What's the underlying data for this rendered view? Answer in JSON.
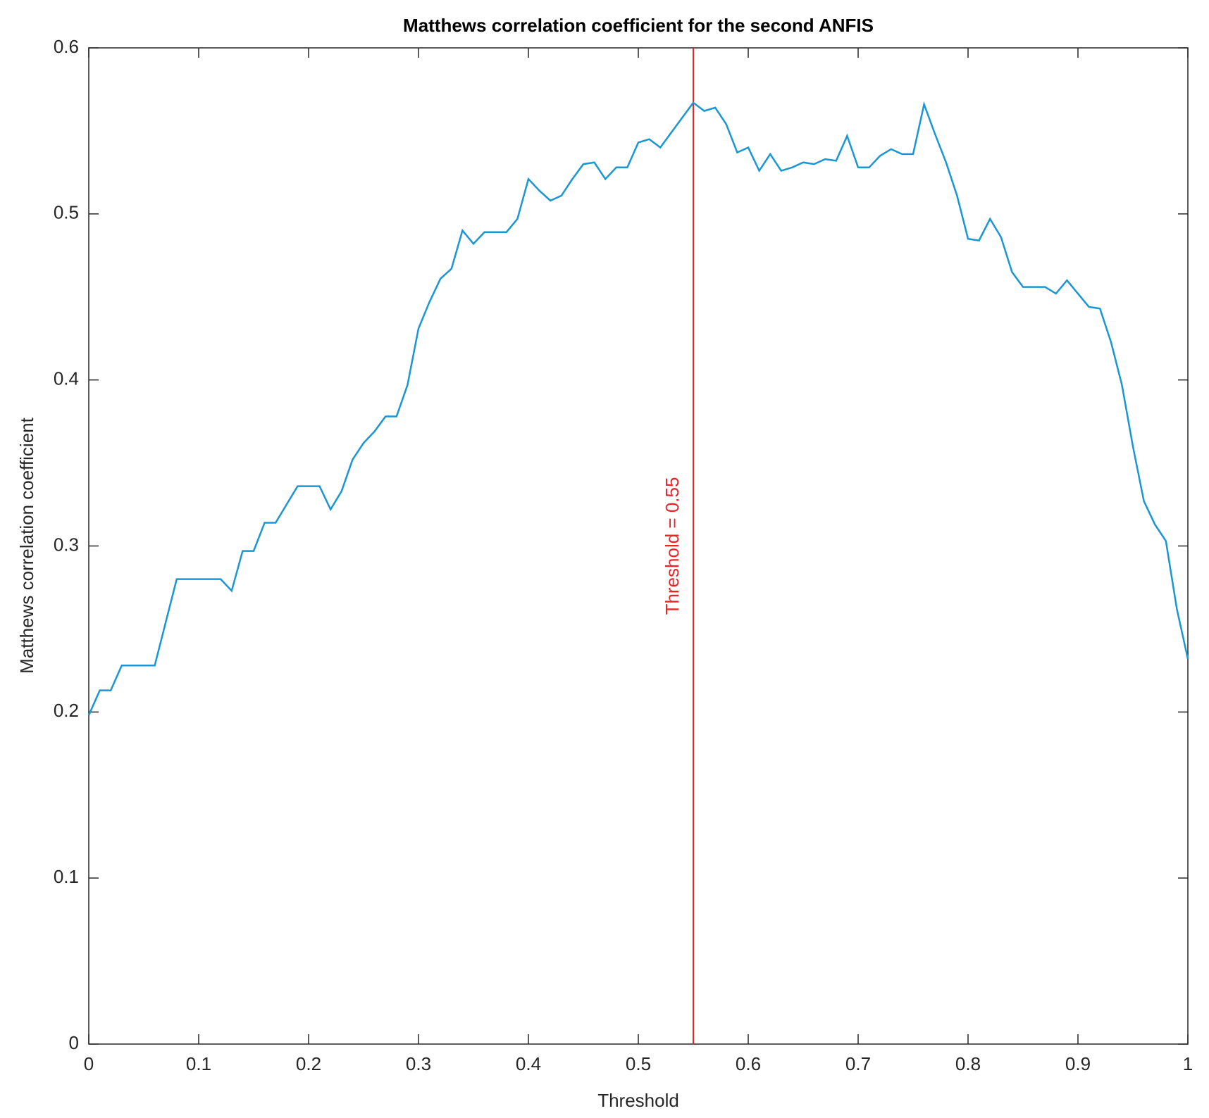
{
  "chart_data": {
    "type": "line",
    "title": "Matthews correlation coefficient for the second ANFIS",
    "x_label": "Threshold",
    "y_label": "Matthews correlation coefficient",
    "x": [
      0,
      0.01,
      0.02,
      0.03,
      0.04,
      0.05,
      0.06,
      0.07,
      0.08,
      0.09,
      0.1,
      0.11,
      0.12,
      0.13,
      0.14,
      0.15,
      0.16,
      0.17,
      0.18,
      0.19,
      0.2,
      0.21,
      0.22,
      0.23,
      0.24,
      0.25,
      0.26,
      0.27,
      0.28,
      0.29,
      0.3,
      0.31,
      0.32,
      0.33,
      0.34,
      0.35,
      0.36,
      0.37,
      0.38,
      0.39,
      0.4,
      0.41,
      0.42,
      0.43,
      0.44,
      0.45,
      0.46,
      0.47,
      0.48,
      0.49,
      0.5,
      0.51,
      0.52,
      0.53,
      0.54,
      0.55,
      0.56,
      0.57,
      0.58,
      0.59,
      0.6,
      0.61,
      0.62,
      0.63,
      0.64,
      0.65,
      0.66,
      0.67,
      0.68,
      0.69,
      0.7,
      0.71,
      0.72,
      0.73,
      0.74,
      0.75,
      0.76,
      0.77,
      0.78,
      0.79,
      0.8,
      0.81,
      0.82,
      0.83,
      0.84,
      0.85,
      0.86,
      0.87,
      0.88,
      0.89,
      0.9,
      0.91,
      0.92,
      0.93,
      0.94,
      0.95,
      0.96,
      0.97,
      0.98,
      0.99,
      1
    ],
    "values": [
      0.198,
      0.213,
      0.213,
      0.228,
      0.228,
      0.228,
      0.228,
      0.254,
      0.28,
      0.28,
      0.28,
      0.28,
      0.28,
      0.273,
      0.297,
      0.297,
      0.314,
      0.314,
      0.325,
      0.336,
      0.336,
      0.336,
      0.322,
      0.333,
      0.352,
      0.362,
      0.369,
      0.378,
      0.378,
      0.397,
      0.431,
      0.447,
      0.461,
      0.467,
      0.49,
      0.482,
      0.489,
      0.489,
      0.489,
      0.497,
      0.521,
      0.514,
      0.508,
      0.511,
      0.521,
      0.53,
      0.531,
      0.521,
      0.528,
      0.528,
      0.543,
      0.545,
      0.54,
      0.549,
      0.558,
      0.567,
      0.562,
      0.564,
      0.554,
      0.537,
      0.54,
      0.526,
      0.536,
      0.526,
      0.528,
      0.531,
      0.53,
      0.533,
      0.532,
      0.547,
      0.528,
      0.528,
      0.535,
      0.539,
      0.536,
      0.536,
      0.566,
      0.548,
      0.531,
      0.511,
      0.485,
      0.484,
      0.497,
      0.486,
      0.465,
      0.456,
      0.456,
      0.456,
      0.452,
      0.46,
      0.452,
      0.444,
      0.443,
      0.423,
      0.397,
      0.36,
      0.327,
      0.313,
      0.303,
      0.262,
      0.232
    ],
    "color": "#1a96d4",
    "threshold": {
      "value": 0.55,
      "label": "Threshold = 0.55",
      "color": "#e8262a"
    },
    "xlim": [
      0,
      1
    ],
    "xticks": [
      0,
      0.1,
      0.2,
      0.3,
      0.4,
      0.5,
      0.6,
      0.7,
      0.8,
      0.9,
      1
    ],
    "ylim": [
      0,
      0.6
    ],
    "yticks": [
      0,
      0.1,
      0.2,
      0.3,
      0.4,
      0.5,
      0.6
    ],
    "grid": false
  }
}
